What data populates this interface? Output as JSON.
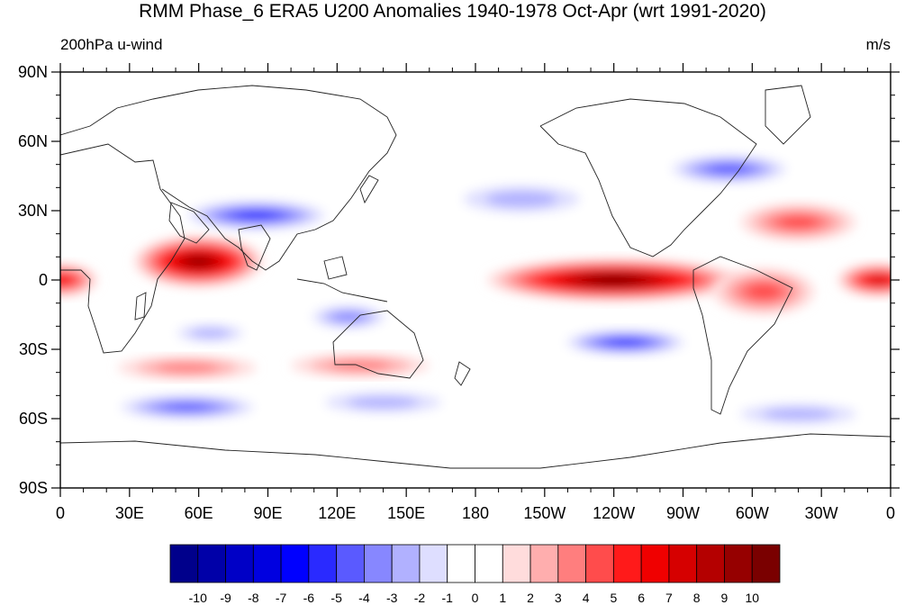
{
  "title": "RMM Phase_6 ERA5 U200 Anomalies 1940-1978 Oct-Apr (wrt 1991-2020)",
  "subtitle_left": "200hPa u-wind",
  "subtitle_right": "m/s",
  "map": {
    "lon_ticks": [
      {
        "lon": 0,
        "label": "0"
      },
      {
        "lon": 30,
        "label": "30E"
      },
      {
        "lon": 60,
        "label": "60E"
      },
      {
        "lon": 90,
        "label": "90E"
      },
      {
        "lon": 120,
        "label": "120E"
      },
      {
        "lon": 150,
        "label": "150E"
      },
      {
        "lon": 180,
        "label": "180"
      },
      {
        "lon": 210,
        "label": "150W"
      },
      {
        "lon": 240,
        "label": "120W"
      },
      {
        "lon": 270,
        "label": "90W"
      },
      {
        "lon": 300,
        "label": "60W"
      },
      {
        "lon": 330,
        "label": "30W"
      },
      {
        "lon": 360,
        "label": "0"
      }
    ],
    "lat_ticks": [
      {
        "lat": 90,
        "label": "90N"
      },
      {
        "lat": 60,
        "label": "60N"
      },
      {
        "lat": 30,
        "label": "30N"
      },
      {
        "lat": 0,
        "label": "0"
      },
      {
        "lat": -30,
        "label": "30S"
      },
      {
        "lat": -60,
        "label": "60S"
      },
      {
        "lat": -90,
        "label": "90S"
      }
    ],
    "anomaly_features": [
      {
        "name": "indian-ocean-westerly",
        "lon": 60,
        "lat": 8,
        "rx": 28,
        "ry": 11,
        "value": 9
      },
      {
        "name": "africa-equatorial-westerly",
        "lon": 0,
        "lat": 0,
        "rx": 16,
        "ry": 7,
        "value": 6
      },
      {
        "name": "atlantic-equatorial-westerly",
        "lon": 355,
        "lat": 0,
        "rx": 18,
        "ry": 7,
        "value": 7
      },
      {
        "name": "east-pacific-westerly",
        "lon": 240,
        "lat": 0,
        "rx": 55,
        "ry": 9,
        "value": 10
      },
      {
        "name": "south-america-westerly",
        "lon": 305,
        "lat": -5,
        "rx": 22,
        "ry": 10,
        "value": 4
      },
      {
        "name": "asia-jet-easterly",
        "lon": 85,
        "lat": 28,
        "rx": 35,
        "ry": 7,
        "value": -6
      },
      {
        "name": "north-america-easterly",
        "lon": 290,
        "lat": 48,
        "rx": 30,
        "ry": 7,
        "value": -5
      },
      {
        "name": "south-pacific-easterly",
        "lon": 245,
        "lat": -27,
        "rx": 30,
        "ry": 6,
        "value": -6
      },
      {
        "name": "australia-easterly",
        "lon": 125,
        "lat": -16,
        "rx": 20,
        "ry": 6,
        "value": -4
      },
      {
        "name": "indian-south-easterly",
        "lon": 65,
        "lat": -23,
        "rx": 20,
        "ry": 5,
        "value": -3
      },
      {
        "name": "southern-ocean-easterly",
        "lon": 55,
        "lat": -55,
        "rx": 35,
        "ry": 6,
        "value": -5
      },
      {
        "name": "southern-ocean-easterly-2",
        "lon": 140,
        "lat": -53,
        "rx": 35,
        "ry": 6,
        "value": -3
      },
      {
        "name": "southern-ocean-easterly-3",
        "lon": 320,
        "lat": -58,
        "rx": 35,
        "ry": 6,
        "value": -3
      },
      {
        "name": "north-pacific-easterly",
        "lon": 200,
        "lat": 35,
        "rx": 35,
        "ry": 8,
        "value": -3
      },
      {
        "name": "north-america-westerly",
        "lon": 320,
        "lat": 25,
        "rx": 25,
        "ry": 8,
        "value": 4
      },
      {
        "name": "south-mid-westerly",
        "lon": 130,
        "lat": -37,
        "rx": 30,
        "ry": 5,
        "value": 3
      },
      {
        "name": "south-mid-westerly-2",
        "lon": 55,
        "lat": -38,
        "rx": 30,
        "ry": 5,
        "value": 3
      }
    ]
  },
  "colorbar": {
    "levels": [
      "-10",
      "-9",
      "-8",
      "-7",
      "-6",
      "-5",
      "-4",
      "-3",
      "-2",
      "-1",
      "0",
      "1",
      "2",
      "3",
      "4",
      "5",
      "6",
      "7",
      "8",
      "9",
      "10"
    ],
    "colors": [
      "#00008b",
      "#0000a8",
      "#0000c6",
      "#0000e0",
      "#0000ff",
      "#2a2aff",
      "#5a5aff",
      "#8787ff",
      "#b1b1ff",
      "#dedeff",
      "#ffffff",
      "#ffffff",
      "#ffdcdc",
      "#ffaeae",
      "#ff7e7e",
      "#ff4c4c",
      "#ff1a1a",
      "#f00000",
      "#d60000",
      "#b40000",
      "#960000",
      "#7a0000"
    ]
  }
}
